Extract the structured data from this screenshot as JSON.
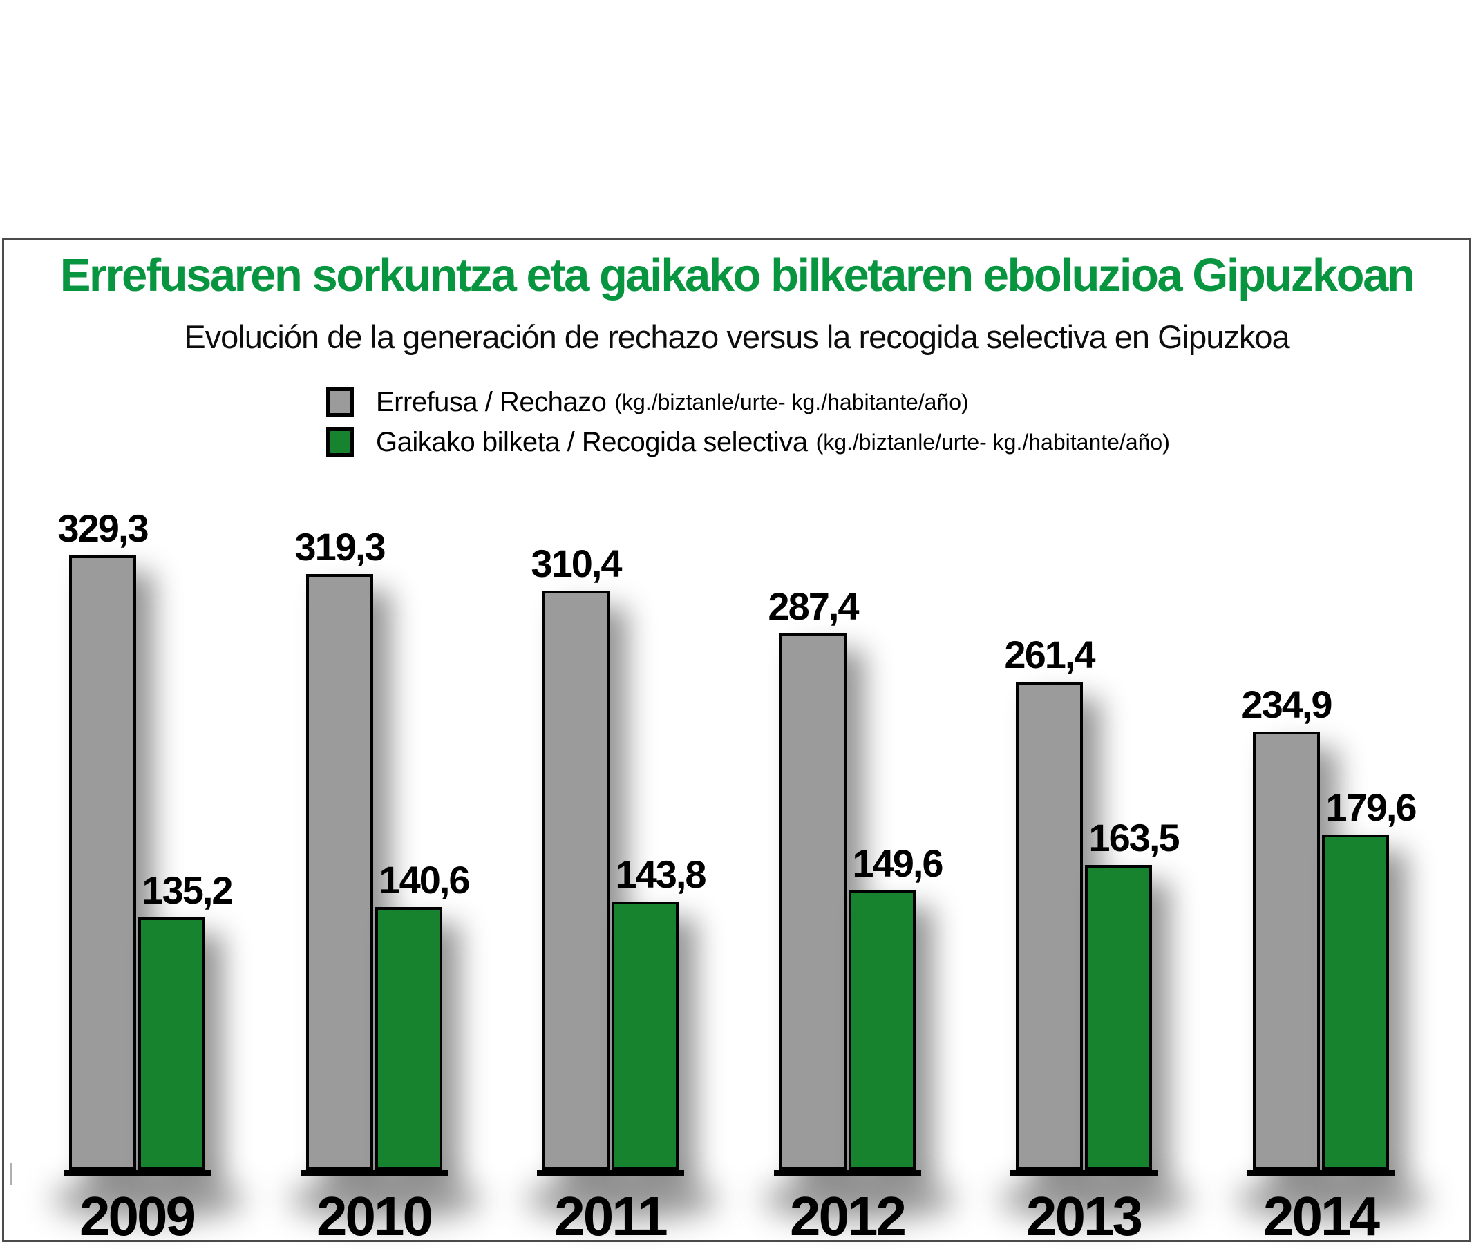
{
  "chart_data": {
    "type": "bar",
    "title": "Errefusaren sorkuntza eta gaikako bilketaren eboluzioa Gipuzkoan",
    "subtitle": "Evolución de la generación de rechazo versus la recogida selectiva en Gipuzkoa",
    "title_color": "#089540",
    "categories": [
      "2009",
      "2010",
      "2011",
      "2012",
      "2013",
      "2014"
    ],
    "series": [
      {
        "name": "Errefusa / Rechazo",
        "units": "(kg./biztanle/urte- kg./habitante/año)",
        "color": "#9b9b9b",
        "values": [
          329.3,
          319.3,
          310.4,
          287.4,
          261.4,
          234.9
        ],
        "labels": [
          "329,3",
          "319,3",
          "310,4",
          "287,4",
          "261,4",
          "234,9"
        ]
      },
      {
        "name": "Gaikako bilketa / Recogida selectiva",
        "units": "(kg./biztanle/urte- kg./habitante/año)",
        "color": "#17832f",
        "values": [
          135.2,
          140.6,
          143.8,
          149.6,
          163.5,
          179.6
        ],
        "labels": [
          "135,2",
          "140,6",
          "143,8",
          "149,6",
          "163,5",
          "179,6"
        ]
      }
    ],
    "ylim": [
      0,
      350
    ],
    "grid": false,
    "legend_position": "top",
    "value_labels_shown": true
  }
}
